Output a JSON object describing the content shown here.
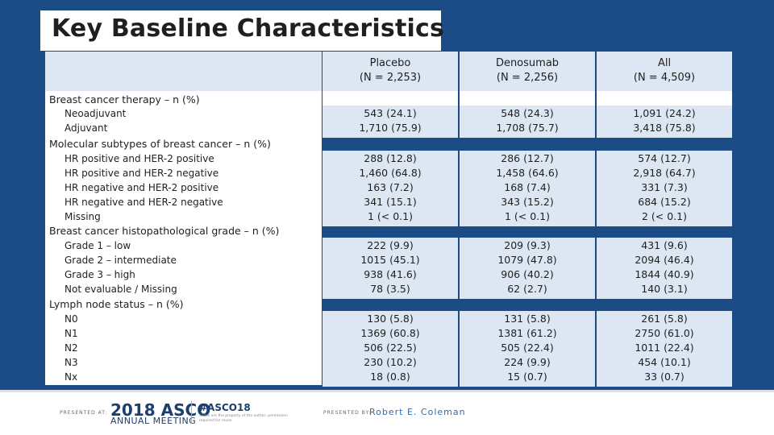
{
  "title": "Key Baseline Characteristics",
  "columns": [
    {
      "line1": "Placebo",
      "line2": "(N = 2,253)"
    },
    {
      "line1": "Denosumab",
      "line2": "(N = 2,256)"
    },
    {
      "line1": "All",
      "line2": "(N = 4,509)"
    }
  ],
  "groups": [
    {
      "label": "Breast cancer therapy – n (%)",
      "rows": [
        {
          "label": "Neoadjuvant",
          "values": [
            "543 (24.1)",
            "548 (24.3)",
            "1,091 (24.2)"
          ]
        },
        {
          "label": "Adjuvant",
          "values": [
            "1,710 (75.9)",
            "1,708 (75.7)",
            "3,418 (75.8)"
          ]
        }
      ]
    },
    {
      "label": "Molecular subtypes of breast cancer – n (%)",
      "rows": [
        {
          "label": "HR positive and HER-2 positive",
          "values": [
            "288 (12.8)",
            "286 (12.7)",
            "574 (12.7)"
          ]
        },
        {
          "label": "HR positive and HER-2 negative",
          "values": [
            "1,460 (64.8)",
            "1,458 (64.6)",
            "2,918 (64.7)"
          ]
        },
        {
          "label": "HR negative and HER-2 positive",
          "values": [
            "163 (7.2)",
            "168 (7.4)",
            "331 (7.3)"
          ]
        },
        {
          "label": "HR negative and HER-2 negative",
          "values": [
            "341 (15.1)",
            "343 (15.2)",
            "684 (15.2)"
          ]
        },
        {
          "label": "Missing",
          "values": [
            "1 (< 0.1)",
            "1 (< 0.1)",
            "2 (< 0.1)"
          ]
        }
      ]
    },
    {
      "label": "Breast cancer histopathological grade – n (%)",
      "rows": [
        {
          "label": "Grade 1 – low",
          "values": [
            "222 (9.9)",
            "209 (9.3)",
            "431 (9.6)"
          ]
        },
        {
          "label": "Grade 2 – intermediate",
          "values": [
            "1015 (45.1)",
            "1079 (47.8)",
            "2094 (46.4)"
          ]
        },
        {
          "label": "Grade 3 – high",
          "values": [
            "938 (41.6)",
            "906 (40.2)",
            "1844 (40.9)"
          ]
        },
        {
          "label": "Not evaluable / Missing",
          "values": [
            "78 (3.5)",
            "62 (2.7)",
            "140 (3.1)"
          ]
        }
      ]
    },
    {
      "label": "Lymph node status – n (%)",
      "rows": [
        {
          "label": "N0",
          "values": [
            "130 (5.8)",
            "131 (5.8)",
            "261 (5.8)"
          ]
        },
        {
          "label": "N1",
          "values": [
            "1369 (60.8)",
            "1381 (61.2)",
            "2750 (61.0)"
          ]
        },
        {
          "label": "N2",
          "values": [
            "506 (22.5)",
            "505 (22.4)",
            "1011 (22.4)"
          ]
        },
        {
          "label": "N3",
          "values": [
            "230 (10.2)",
            "224 (9.9)",
            "454 (10.1)"
          ]
        },
        {
          "label": "Nx",
          "values": [
            "18 (0.8)",
            "15 (0.7)",
            "33 (0.7)"
          ]
        }
      ]
    }
  ],
  "footer": {
    "presented_at": "PRESENTED AT:",
    "meeting_year": "2018",
    "meeting_name": "ASCO",
    "meeting_sub": "ANNUAL MEETING",
    "hashtag": "#ASCO18",
    "hashtag_note": "Slides are the property of the author, permission required for reuse.",
    "presented_by": "PRESENTED BY:",
    "presenter": "Robert E. Coleman"
  },
  "colors": {
    "band": "#1b4c86",
    "cell": "#dce7f3",
    "presenter": "#2e6cb5"
  }
}
